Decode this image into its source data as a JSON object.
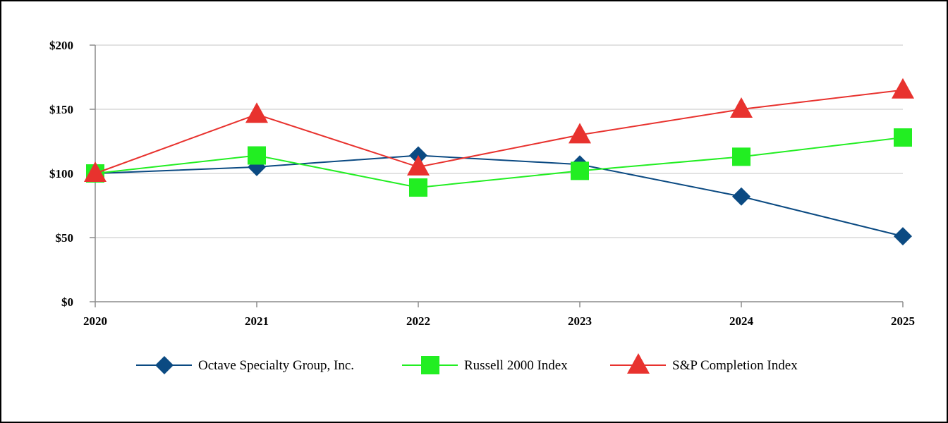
{
  "chart_data": {
    "type": "line",
    "title": "",
    "xlabel": "",
    "ylabel": "",
    "categories": [
      "2020",
      "2021",
      "2022",
      "2023",
      "2024",
      "2025"
    ],
    "ylim": [
      0,
      200
    ],
    "y_ticks": [
      0,
      50,
      100,
      150,
      200
    ],
    "y_tick_labels": [
      "$0",
      "$50",
      "$100",
      "$150",
      "$200"
    ],
    "grid": "horizontal",
    "legend_position": "bottom",
    "series": [
      {
        "name": "Octave Specialty Group, Inc.",
        "values": [
          100,
          105,
          114,
          107,
          82,
          51
        ],
        "color": "#0b4a82",
        "marker": "diamond"
      },
      {
        "name": "Russell 2000 Index",
        "values": [
          100,
          114,
          89,
          102,
          113,
          128
        ],
        "color": "#22ee22",
        "marker": "square"
      },
      {
        "name": "S&P Completion Index",
        "values": [
          100,
          146,
          105,
          130,
          150,
          165
        ],
        "color": "#e8322e",
        "marker": "triangle"
      }
    ]
  }
}
